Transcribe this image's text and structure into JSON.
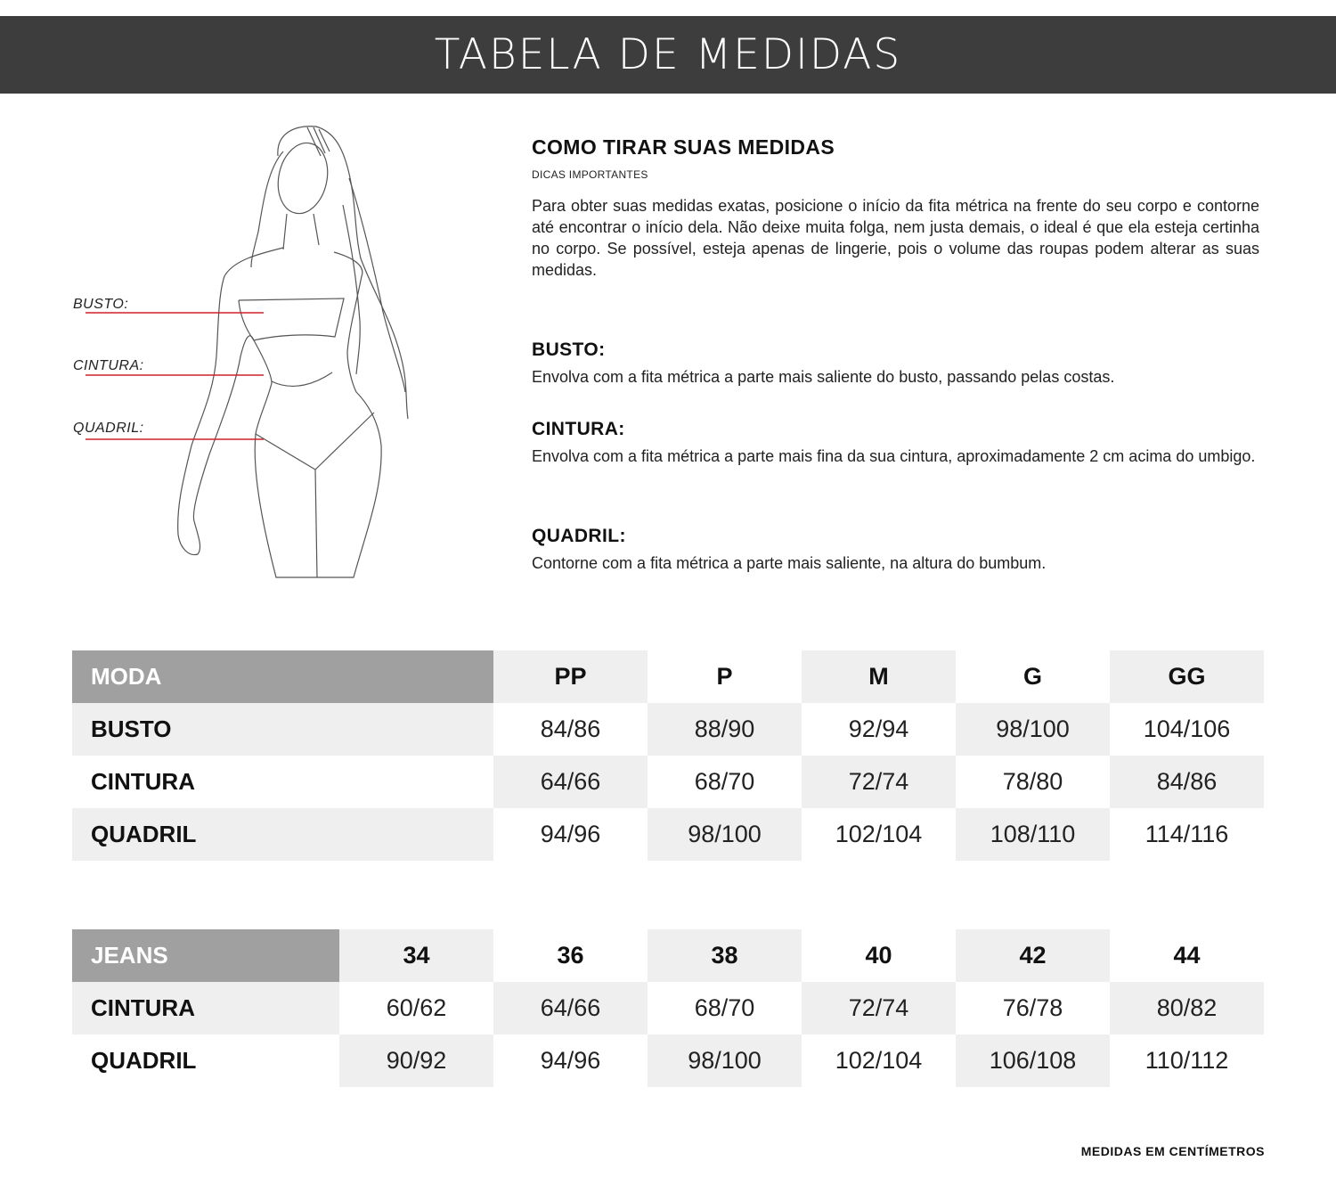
{
  "header": {
    "title": "TABELA DE MEDIDAS"
  },
  "figure": {
    "labels": [
      "BUSTO:",
      "CINTURA:",
      "QUADRIL:"
    ],
    "accent_color": "#d0202a"
  },
  "info": {
    "title": "COMO TIRAR SUAS MEDIDAS",
    "subtitle": "DICAS IMPORTANTES",
    "paragraph": "Para obter suas medidas exatas, posicione o início da fita métrica na frente do seu corpo e contorne até encontrar o início dela. Não deixe muita folga, nem justa demais, o ideal é que ela esteja certinha no corpo. Se possível, esteja apenas de lingerie, pois o volume das roupas podem alterar as suas medidas.",
    "sections": [
      {
        "title": "BUSTO:",
        "text": "Envolva com a fita métrica a parte mais saliente do busto, passando pelas costas."
      },
      {
        "title": "CINTURA:",
        "text": "Envolva com a fita métrica a parte mais fina da sua cintura, aproximadamente 2 cm acima do umbigo."
      },
      {
        "title": "QUADRIL:",
        "text": "Contorne com a fita métrica a parte mais saliente, na altura do bumbum."
      }
    ]
  },
  "moda_table": {
    "corner": "MODA",
    "sizes": [
      "PP",
      "P",
      "M",
      "G",
      "GG"
    ],
    "rows": [
      {
        "label": "BUSTO",
        "values": [
          "84/86",
          "88/90",
          "92/94",
          "98/100",
          "104/106"
        ]
      },
      {
        "label": "CINTURA",
        "values": [
          "64/66",
          "68/70",
          "72/74",
          "78/80",
          "84/86"
        ]
      },
      {
        "label": "QUADRIL",
        "values": [
          "94/96",
          "98/100",
          "102/104",
          "108/110",
          "114/116"
        ]
      }
    ]
  },
  "jeans_table": {
    "corner": "JEANS",
    "sizes": [
      "34",
      "36",
      "38",
      "40",
      "42",
      "44"
    ],
    "rows": [
      {
        "label": "CINTURA",
        "values": [
          "60/62",
          "64/66",
          "68/70",
          "72/74",
          "76/78",
          "80/82"
        ]
      },
      {
        "label": "QUADRIL",
        "values": [
          "90/92",
          "94/96",
          "98/100",
          "102/104",
          "106/108",
          "110/112"
        ]
      }
    ]
  },
  "footer": {
    "note": "MEDIDAS EM CENTÍMETROS"
  }
}
